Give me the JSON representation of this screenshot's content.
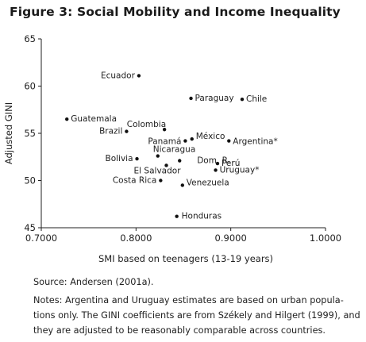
{
  "title": "Figure 3: Social Mobility and Income Inequality",
  "chart_data": {
    "type": "scatter",
    "xlabel": "SMI based on teenagers (13-19 years)",
    "ylabel": "Adjusted GINI",
    "xlim": [
      0.7,
      1.0
    ],
    "ylim": [
      45,
      65
    ],
    "xticks": [
      "0.7000",
      "0.8000",
      "0.9000",
      "1.0000"
    ],
    "yticks": [
      "45",
      "50",
      "55",
      "60",
      "65"
    ],
    "grid": false,
    "points": [
      {
        "label": "Ecuador",
        "x": 0.803,
        "y": 61.1
      },
      {
        "label": "Paraguay",
        "x": 0.858,
        "y": 58.7
      },
      {
        "label": "Chile",
        "x": 0.912,
        "y": 58.6
      },
      {
        "label": "Guatemala",
        "x": 0.727,
        "y": 56.5
      },
      {
        "label": "Colombia",
        "x": 0.83,
        "y": 55.4
      },
      {
        "label": "Brazil",
        "x": 0.79,
        "y": 55.2
      },
      {
        "label": "México",
        "x": 0.859,
        "y": 54.4
      },
      {
        "label": "Panamá",
        "x": 0.852,
        "y": 54.2
      },
      {
        "label": "Argentina*",
        "x": 0.898,
        "y": 54.2
      },
      {
        "label": "Nicaragua",
        "x": 0.823,
        "y": 52.6
      },
      {
        "label": "Bolivia",
        "x": 0.801,
        "y": 52.3
      },
      {
        "label": "Dom. R.",
        "x": 0.846,
        "y": 52.1
      },
      {
        "label": "Perú",
        "x": 0.886,
        "y": 51.8
      },
      {
        "label": "El Salvador",
        "x": 0.832,
        "y": 51.6
      },
      {
        "label": "Uruguay*",
        "x": 0.884,
        "y": 51.1
      },
      {
        "label": "Costa Rica",
        "x": 0.826,
        "y": 50.0
      },
      {
        "label": "Venezuela",
        "x": 0.849,
        "y": 49.5
      },
      {
        "label": "Honduras",
        "x": 0.843,
        "y": 46.2
      }
    ]
  },
  "notes": {
    "source": "Source: Andersen (2001a).",
    "line1": "Notes: Argentina and Uruguay estimates are based on urban popula-",
    "line2": "tions only. The GINI coefficients are from Székely and Hilgert (1999), and",
    "line3": "they are adjusted to be reasonably comparable across countries."
  }
}
